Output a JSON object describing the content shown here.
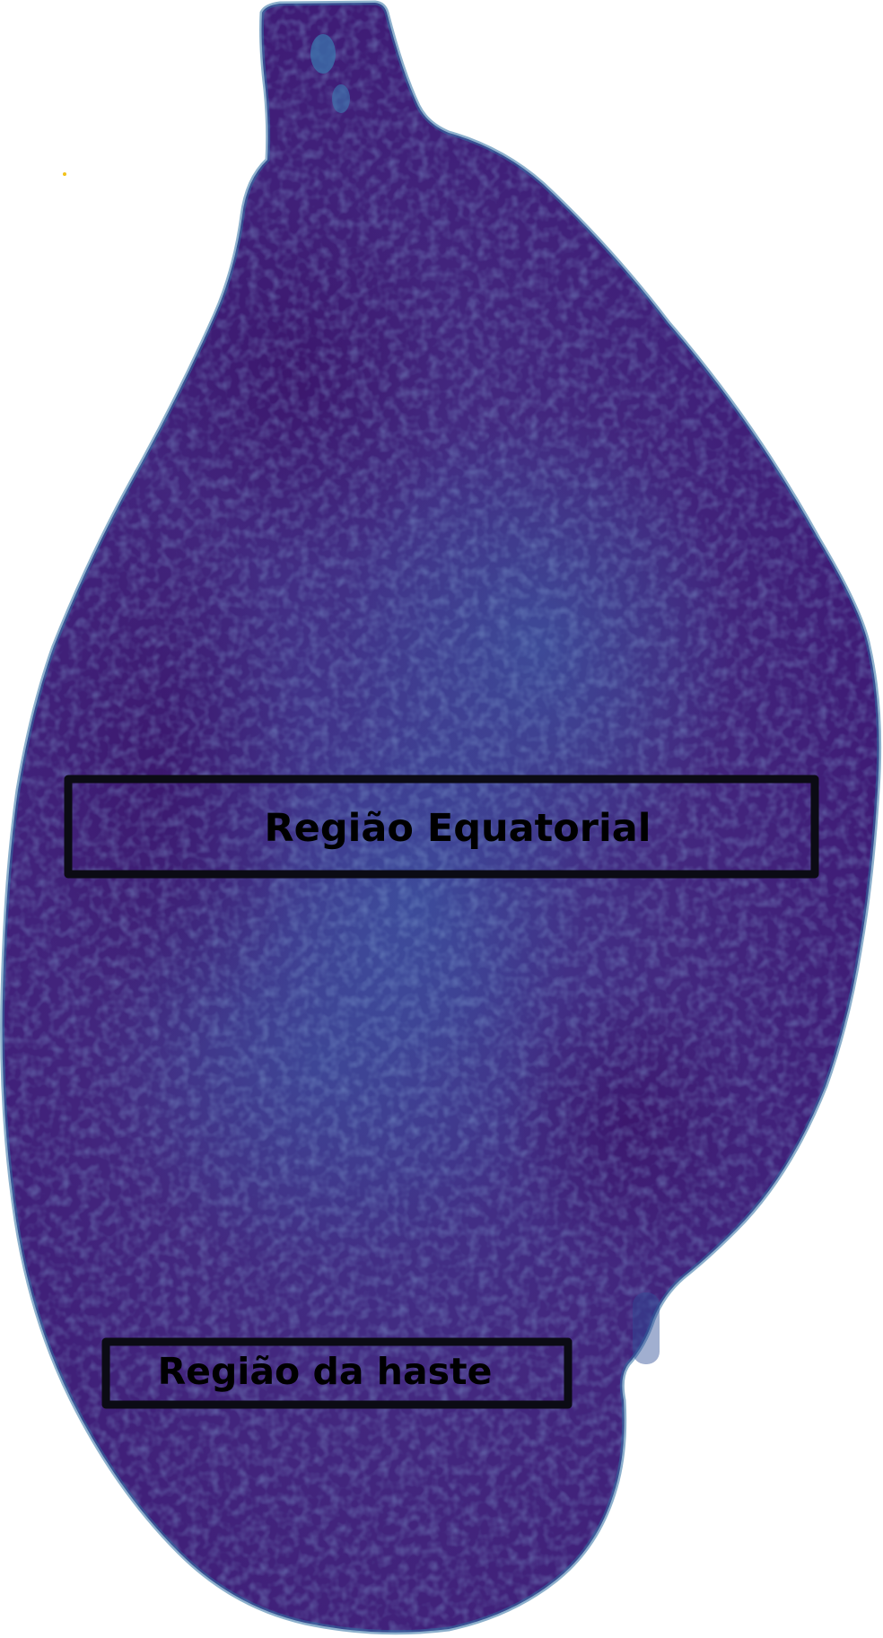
{
  "figure": {
    "subject": "fruit-heatmap",
    "colors": {
      "fruit_base": "#48207a",
      "fruit_dark": "#3a0f6a",
      "fruit_light": "#3d5ea6",
      "fruit_edge": "#2f6fa3",
      "box_stroke": "#0b0b14",
      "background": "#ffffff"
    },
    "regions": [
      {
        "id": "equatorial",
        "label": "Região Equatorial"
      },
      {
        "id": "stem",
        "label": "Região da haste"
      }
    ]
  }
}
